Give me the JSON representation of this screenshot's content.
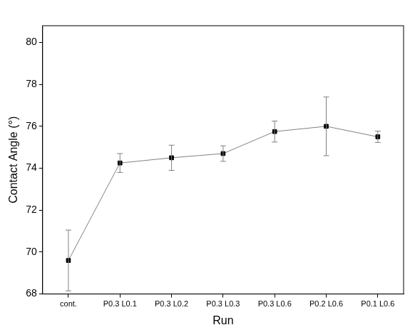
{
  "chart_data": {
    "type": "line",
    "x_label": "Run",
    "y_label": "Contact Angle (°)",
    "categories": [
      "cont.",
      "P0.3 L0.1",
      "P0.3 L0.2",
      "P0.3 L0.3",
      "P0.3 L0.6",
      "P0.2 L0.6",
      "P0.1 L0.6"
    ],
    "values": [
      69.6,
      74.25,
      74.5,
      74.7,
      75.75,
      76.0,
      75.5
    ],
    "errors": [
      1.45,
      0.45,
      0.6,
      0.37,
      0.5,
      1.4,
      0.27
    ],
    "color": "#000000",
    "marker": "square",
    "ylim": [
      68,
      80.8
    ],
    "yticks": [
      68,
      70,
      72,
      74,
      76,
      78,
      80
    ],
    "grid": false
  }
}
